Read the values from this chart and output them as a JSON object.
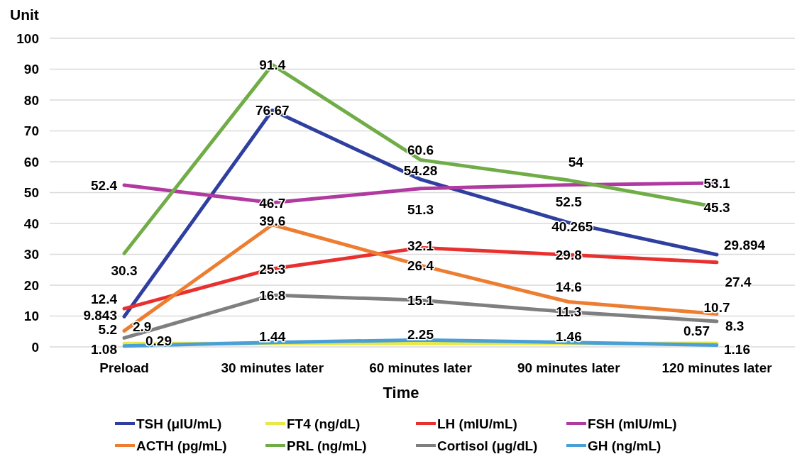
{
  "chart_data": {
    "type": "line",
    "ylabel": "Unit",
    "xlabel": "Time",
    "categories": [
      "Preload",
      "30 minutes later",
      "60 minutes later",
      "90 minutes later",
      "120 minutes later"
    ],
    "ylim": [
      0,
      100
    ],
    "yticks": [
      0,
      10,
      20,
      30,
      40,
      50,
      60,
      70,
      80,
      90,
      100
    ],
    "grid": "y",
    "legend": "bottom",
    "marker": "none",
    "line_style": "solid",
    "series": [
      {
        "name": "TSH (μIU/mL)",
        "color": "#2f3fa0",
        "values": [
          9.843,
          76.67,
          54.28,
          40.265,
          29.894
        ],
        "value_labels": [
          "9.843",
          "76.67",
          "54.28",
          "40.265",
          "29.894"
        ]
      },
      {
        "name": "FT4 (ng/dL)",
        "color": "#e8e84a",
        "values": [
          1.08,
          1.1,
          1.1,
          1.1,
          1.16
        ],
        "value_labels": [
          "1.08",
          null,
          null,
          null,
          "1.16"
        ]
      },
      {
        "name": "LH (mIU/mL)",
        "color": "#e8312f",
        "values": [
          12.4,
          25.3,
          32.1,
          29.8,
          27.4
        ],
        "value_labels": [
          "12.4",
          "25.3",
          "32.1",
          "29.8",
          "27.4"
        ]
      },
      {
        "name": "FSH (mIU/mL)",
        "color": "#b03aa0",
        "values": [
          52.4,
          46.7,
          51.3,
          52.5,
          53.1
        ],
        "value_labels": [
          "52.4",
          "46.7",
          "51.3",
          "52.5",
          "53.1"
        ]
      },
      {
        "name": "ACTH (pg/mL)",
        "color": "#ed7d31",
        "values": [
          5.2,
          39.6,
          26.4,
          14.6,
          10.7
        ],
        "value_labels": [
          "5.2",
          "39.6",
          "26.4",
          "14.6",
          "10.7"
        ]
      },
      {
        "name": "PRL (ng/mL)",
        "color": "#70ad47",
        "values": [
          30.3,
          91.4,
          60.6,
          54,
          45.3
        ],
        "value_labels": [
          "30.3",
          "91.4",
          "60.6",
          "54",
          "45.3"
        ]
      },
      {
        "name": "Cortisol (μg/dL)",
        "color": "#7f7f7f",
        "values": [
          2.9,
          16.8,
          15.1,
          11.3,
          8.3
        ],
        "value_labels": [
          "2.9",
          "16.8",
          "15.1",
          "11.3",
          "8.3"
        ]
      },
      {
        "name": "GH (ng/mL)",
        "color": "#4a9fd6",
        "values": [
          0.29,
          1.44,
          2.25,
          1.46,
          0.57
        ],
        "value_labels": [
          "0.29",
          "1.44",
          "2.25",
          "1.46",
          "0.57"
        ]
      }
    ]
  }
}
